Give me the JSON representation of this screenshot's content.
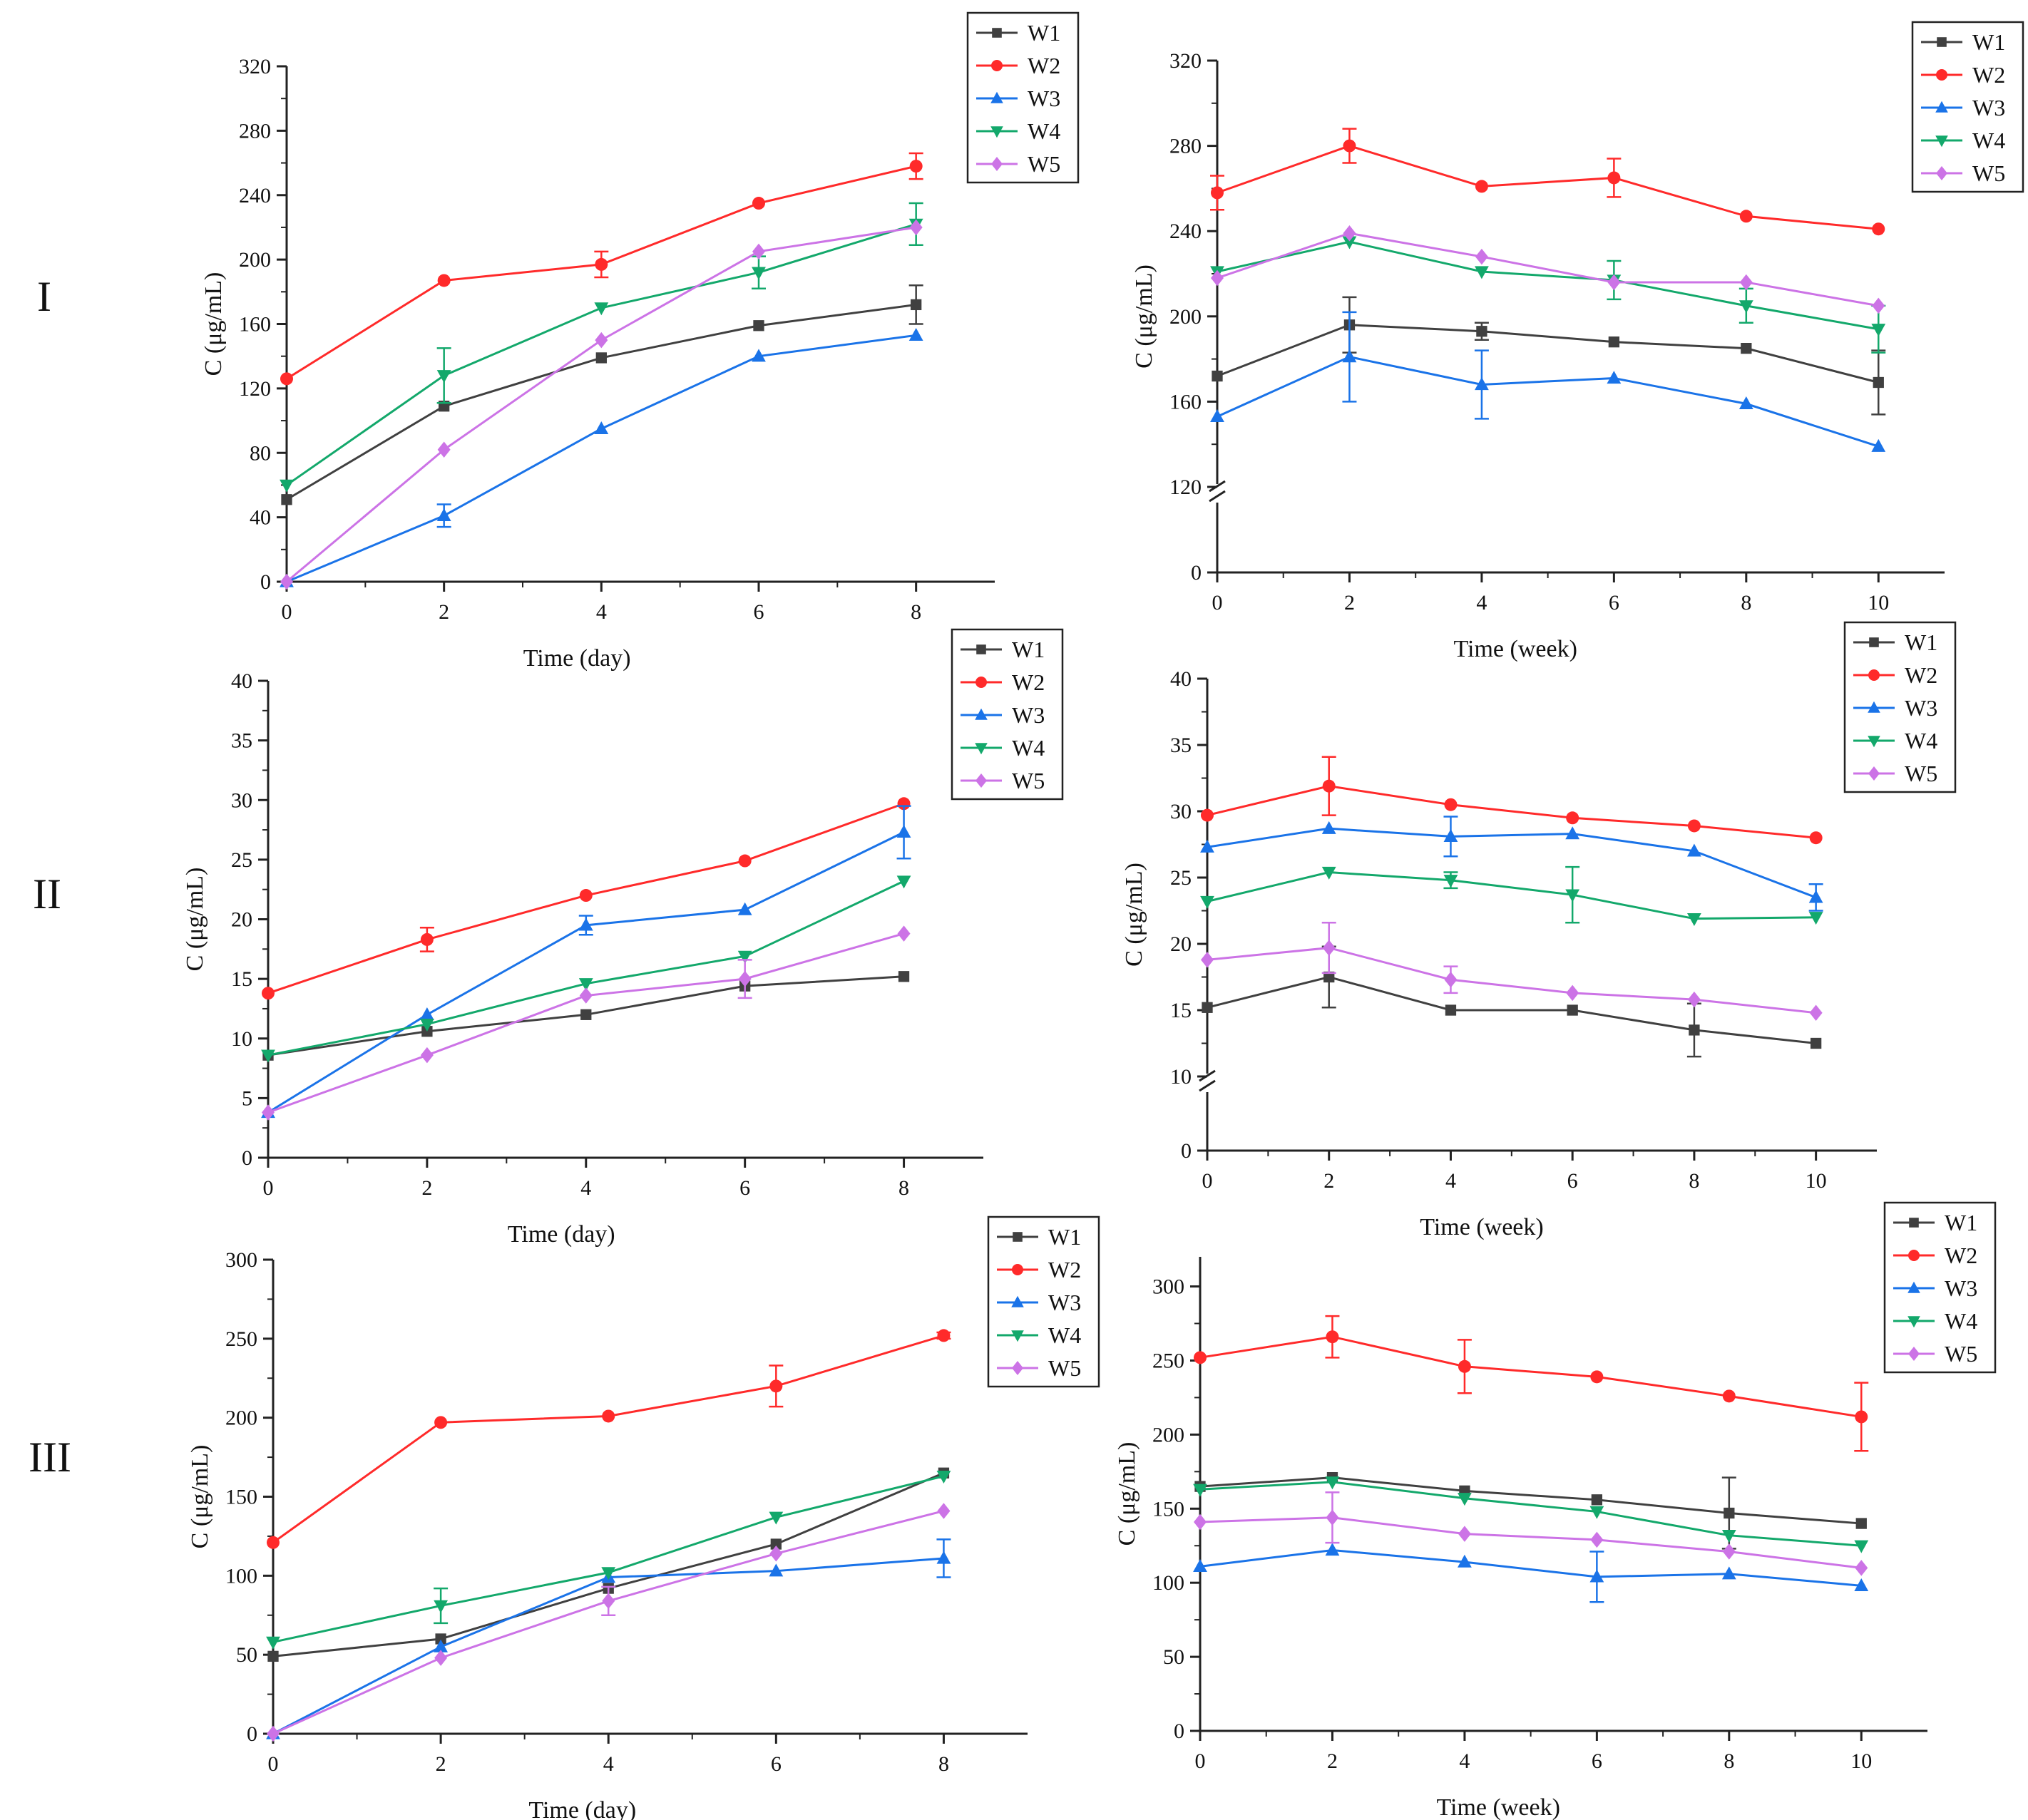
{
  "row_labels": [
    "I",
    "II",
    "III"
  ],
  "series_style": [
    {
      "name": "W1",
      "color": "#404040",
      "marker": "square"
    },
    {
      "name": "W2",
      "color": "#ff2a2a",
      "marker": "circle"
    },
    {
      "name": "W3",
      "color": "#1a73e8",
      "marker": "triangle-up"
    },
    {
      "name": "W4",
      "color": "#13a86b",
      "marker": "triangle-down"
    },
    {
      "name": "W5",
      "color": "#cc73e6",
      "marker": "diamond"
    }
  ],
  "chart_data": [
    {
      "id": "I-day",
      "type": "line",
      "row": "I",
      "xlabel": "Time (day)",
      "ylabel": "C (μg/mL)",
      "xlim": [
        0,
        9
      ],
      "ylim": [
        0,
        320
      ],
      "xticks": [
        0,
        2,
        4,
        6,
        8
      ],
      "yticks": [
        0,
        40,
        80,
        120,
        160,
        200,
        240,
        280,
        320
      ],
      "axis_break": null,
      "legend": "top-right",
      "x": [
        0,
        2,
        4,
        6,
        8
      ],
      "series": [
        {
          "name": "W1",
          "values": [
            51,
            109,
            139,
            159,
            172
          ],
          "errors": [
            0,
            0,
            0,
            0,
            12
          ]
        },
        {
          "name": "W2",
          "values": [
            126,
            187,
            197,
            235,
            258
          ],
          "errors": [
            0,
            0,
            8,
            0,
            8
          ]
        },
        {
          "name": "W3",
          "values": [
            0,
            41,
            95,
            140,
            153
          ],
          "errors": [
            0,
            7,
            0,
            0,
            0
          ]
        },
        {
          "name": "W4",
          "values": [
            60,
            128,
            170,
            192,
            222
          ],
          "errors": [
            0,
            17,
            0,
            10,
            13
          ]
        },
        {
          "name": "W5",
          "values": [
            0,
            82,
            150,
            205,
            220
          ],
          "errors": [
            0,
            0,
            0,
            0,
            0
          ]
        }
      ]
    },
    {
      "id": "I-week",
      "type": "line",
      "row": "I",
      "xlabel": "Time (week)",
      "ylabel": "C (μg/mL)",
      "xlim": [
        0,
        11
      ],
      "ylim": [
        0,
        320
      ],
      "xticks": [
        0,
        2,
        4,
        6,
        8,
        10
      ],
      "yticks": [
        0,
        120,
        160,
        200,
        240,
        280,
        320
      ],
      "axis_break": {
        "below": 0,
        "from": 120
      },
      "legend": "top-right",
      "x": [
        0,
        2,
        4,
        6,
        8,
        10
      ],
      "series": [
        {
          "name": "W1",
          "values": [
            172,
            196,
            193,
            188,
            185,
            169
          ],
          "errors": [
            0,
            13,
            4,
            0,
            0,
            15
          ]
        },
        {
          "name": "W2",
          "values": [
            258,
            280,
            261,
            265,
            247,
            241
          ],
          "errors": [
            8,
            8,
            0,
            9,
            0,
            0
          ]
        },
        {
          "name": "W3",
          "values": [
            153,
            181,
            168,
            171,
            159,
            139
          ],
          "errors": [
            0,
            21,
            16,
            0,
            0,
            0
          ]
        },
        {
          "name": "W4",
          "values": [
            221,
            235,
            221,
            217,
            205,
            194
          ],
          "errors": [
            0,
            0,
            0,
            9,
            8,
            11
          ]
        },
        {
          "name": "W5",
          "values": [
            218,
            239,
            228,
            216,
            216,
            205
          ],
          "errors": [
            0,
            0,
            0,
            0,
            0,
            0
          ]
        }
      ]
    },
    {
      "id": "II-day",
      "type": "line",
      "row": "II",
      "xlabel": "Time (day)",
      "ylabel": "C (μg/mL)",
      "xlim": [
        0,
        9
      ],
      "ylim": [
        0,
        40
      ],
      "xticks": [
        0,
        2,
        4,
        6,
        8
      ],
      "yticks": [
        0,
        5,
        10,
        15,
        20,
        25,
        30,
        35,
        40
      ],
      "axis_break": null,
      "legend": "top-right",
      "x": [
        0,
        2,
        4,
        6,
        8
      ],
      "series": [
        {
          "name": "W1",
          "values": [
            8.6,
            10.6,
            12.0,
            14.4,
            15.2
          ],
          "errors": [
            0,
            0,
            0,
            0,
            0
          ]
        },
        {
          "name": "W2",
          "values": [
            13.8,
            18.3,
            22.0,
            24.9,
            29.7
          ],
          "errors": [
            0,
            1.0,
            0,
            0,
            0
          ]
        },
        {
          "name": "W3",
          "values": [
            3.8,
            12.0,
            19.5,
            20.8,
            27.3
          ],
          "errors": [
            0,
            0,
            0.8,
            0,
            2.2
          ]
        },
        {
          "name": "W4",
          "values": [
            8.6,
            11.2,
            14.6,
            16.9,
            23.2
          ],
          "errors": [
            0,
            0,
            0,
            0,
            0
          ]
        },
        {
          "name": "W5",
          "values": [
            3.8,
            8.6,
            13.6,
            15.0,
            18.8
          ],
          "errors": [
            0,
            0,
            0,
            1.6,
            0
          ]
        }
      ]
    },
    {
      "id": "II-week",
      "type": "line",
      "row": "II",
      "xlabel": "Time (week)",
      "ylabel": "C (μg/mL)",
      "xlim": [
        0,
        11
      ],
      "ylim": [
        0,
        40
      ],
      "xticks": [
        0,
        2,
        4,
        6,
        8,
        10
      ],
      "yticks": [
        0,
        10,
        15,
        20,
        25,
        30,
        35,
        40
      ],
      "axis_break": {
        "below": 0,
        "from": 10
      },
      "legend": "top-right",
      "x": [
        0,
        2,
        4,
        6,
        8,
        10
      ],
      "series": [
        {
          "name": "W1",
          "values": [
            15.2,
            17.5,
            15.0,
            15.0,
            13.5,
            12.5
          ],
          "errors": [
            0,
            2.3,
            0,
            0,
            2.0,
            0
          ]
        },
        {
          "name": "W2",
          "values": [
            29.7,
            31.9,
            30.5,
            29.5,
            28.9,
            28.0
          ],
          "errors": [
            0,
            2.2,
            0,
            0,
            0,
            0
          ]
        },
        {
          "name": "W3",
          "values": [
            27.3,
            28.7,
            28.1,
            28.3,
            27.0,
            23.5
          ],
          "errors": [
            0,
            0,
            1.5,
            0,
            0,
            1.0
          ]
        },
        {
          "name": "W4",
          "values": [
            23.2,
            25.4,
            24.8,
            23.7,
            21.9,
            22.0
          ],
          "errors": [
            0,
            0,
            0.6,
            2.1,
            0,
            0
          ]
        },
        {
          "name": "W5",
          "values": [
            18.8,
            19.7,
            17.3,
            16.3,
            15.8,
            14.8
          ],
          "errors": [
            0,
            1.9,
            1.0,
            0,
            0,
            0
          ]
        }
      ]
    },
    {
      "id": "III-day",
      "type": "line",
      "row": "III",
      "xlabel": "Time (day)",
      "ylabel": "C (μg/mL)",
      "xlim": [
        0,
        9
      ],
      "ylim": [
        0,
        300
      ],
      "xticks": [
        0,
        2,
        4,
        6,
        8
      ],
      "yticks": [
        0,
        50,
        100,
        150,
        200,
        250,
        300
      ],
      "axis_break": null,
      "legend": "top-right",
      "x": [
        0,
        2,
        4,
        6,
        8
      ],
      "series": [
        {
          "name": "W1",
          "values": [
            49,
            60,
            92,
            120,
            165
          ],
          "errors": [
            0,
            0,
            0,
            0,
            0
          ]
        },
        {
          "name": "W2",
          "values": [
            121,
            197,
            201,
            220,
            252
          ],
          "errors": [
            0,
            0,
            0,
            13,
            2
          ]
        },
        {
          "name": "W3",
          "values": [
            0,
            55,
            99,
            103,
            111
          ],
          "errors": [
            0,
            0,
            0,
            0,
            12
          ]
        },
        {
          "name": "W4",
          "values": [
            58,
            81,
            102,
            137,
            163
          ],
          "errors": [
            0,
            11,
            0,
            0,
            0
          ]
        },
        {
          "name": "W5",
          "values": [
            0,
            48,
            84,
            114,
            141
          ],
          "errors": [
            0,
            0,
            9,
            0,
            0
          ]
        }
      ]
    },
    {
      "id": "III-week",
      "type": "line",
      "row": "III",
      "xlabel": "Time (week)",
      "ylabel": "C (μg/mL)",
      "xlim": [
        0,
        11
      ],
      "ylim": [
        0,
        320
      ],
      "xticks": [
        0,
        2,
        4,
        6,
        8,
        10
      ],
      "yticks": [
        0,
        50,
        100,
        150,
        200,
        250,
        300
      ],
      "axis_break": null,
      "legend": "top-right",
      "x": [
        0,
        2,
        4,
        6,
        8,
        10
      ],
      "series": [
        {
          "name": "W1",
          "values": [
            165,
            171,
            162,
            156,
            147,
            140
          ],
          "errors": [
            0,
            0,
            0,
            0,
            24,
            0
          ]
        },
        {
          "name": "W2",
          "values": [
            252,
            266,
            246,
            239,
            226,
            212
          ],
          "errors": [
            0,
            14,
            18,
            0,
            0,
            23
          ]
        },
        {
          "name": "W3",
          "values": [
            111,
            122,
            114,
            104,
            106,
            98
          ],
          "errors": [
            0,
            0,
            0,
            17,
            0,
            0
          ]
        },
        {
          "name": "W4",
          "values": [
            163,
            168,
            157,
            148,
            132,
            125
          ],
          "errors": [
            0,
            0,
            0,
            0,
            0,
            0
          ]
        },
        {
          "name": "W5",
          "values": [
            141,
            144,
            133,
            129,
            121,
            110
          ],
          "errors": [
            0,
            17,
            0,
            0,
            0,
            0
          ]
        }
      ]
    }
  ]
}
